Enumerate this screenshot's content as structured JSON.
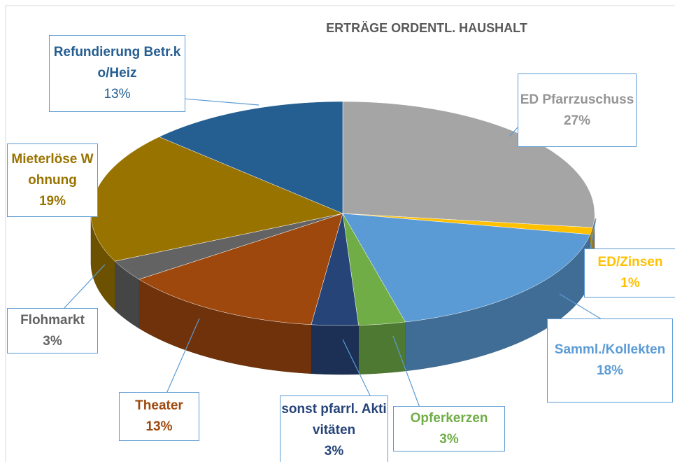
{
  "chart_data": {
    "type": "pie",
    "title": "ERTRÄGE ORDENTL. HAUSHALT",
    "categories": [
      "ED Pfarrzuschuss",
      "ED/Zinsen",
      "Samml./Kollekten",
      "Opferkerzen",
      "sonst pfarrl. Aktivitäten",
      "Theater",
      "Flohmarkt",
      "Mieterlöse Wohnung",
      "Refundierung Betr.ko/Heiz"
    ],
    "values": [
      27,
      1,
      18,
      3,
      3,
      13,
      3,
      19,
      13
    ],
    "value_labels": [
      "27%",
      "1%",
      "18%",
      "3%",
      "3%",
      "13%",
      "3%",
      "19%",
      "13%"
    ],
    "colors": [
      "#a5a5a5",
      "#ffc000",
      "#5b9bd5",
      "#70ad47",
      "#264478",
      "#9e480e",
      "#636363",
      "#997300",
      "#255e91"
    ]
  }
}
